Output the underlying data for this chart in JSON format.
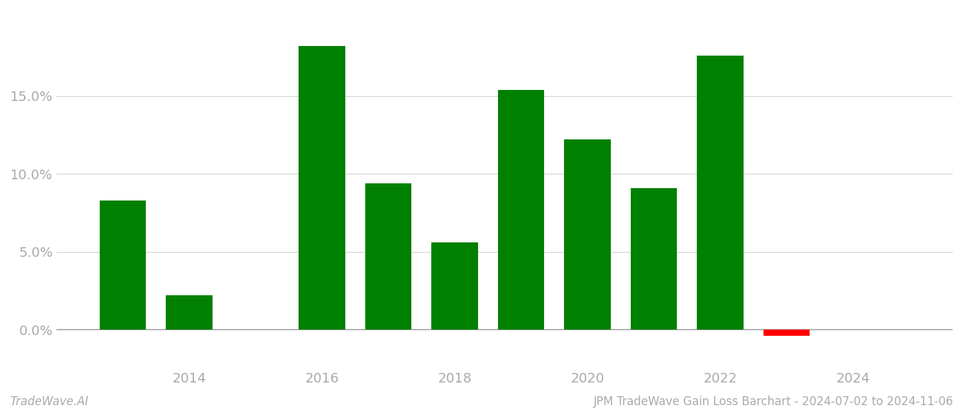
{
  "years": [
    2013,
    2014,
    2016,
    2017,
    2018,
    2019,
    2020,
    2021,
    2022,
    2023
  ],
  "values": [
    0.083,
    0.022,
    0.182,
    0.094,
    0.056,
    0.154,
    0.122,
    0.091,
    0.176,
    -0.004
  ],
  "bar_colors": [
    "#008000",
    "#008000",
    "#008000",
    "#008000",
    "#008000",
    "#008000",
    "#008000",
    "#008000",
    "#008000",
    "#ff0000"
  ],
  "bar_width": 0.7,
  "xlim": [
    2012.0,
    2025.5
  ],
  "ylim": [
    -0.025,
    0.205
  ],
  "xtick_positions": [
    2014,
    2016,
    2018,
    2020,
    2022,
    2024
  ],
  "xtick_labels": [
    "2014",
    "2016",
    "2018",
    "2020",
    "2022",
    "2024"
  ],
  "ytick_positions": [
    0.0,
    0.05,
    0.1,
    0.15
  ],
  "ytick_labels": [
    "0.0%",
    "5.0%",
    "10.0%",
    "15.0%"
  ],
  "footer_left": "TradeWave.AI",
  "footer_right": "JPM TradeWave Gain Loss Barchart - 2024-07-02 to 2024-11-06",
  "grid_color": "#d0d0d0",
  "axis_color": "#aaaaaa",
  "tick_color": "#aaaaaa",
  "background_color": "#ffffff",
  "figsize": [
    14.0,
    6.0
  ],
  "dpi": 100
}
